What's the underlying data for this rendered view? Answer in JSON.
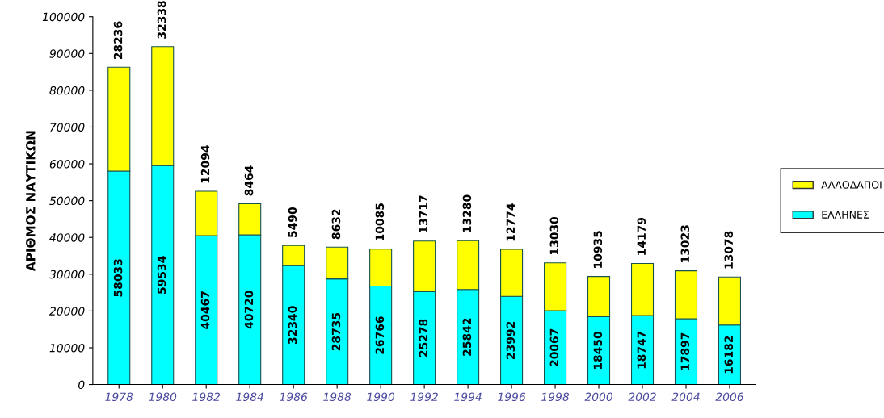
{
  "chart_data": {
    "type": "bar",
    "stacked": true,
    "ylabel": "ΑΡΙΘΜΟΣ ΝΑΥΤΙΚΩΝ",
    "categories": [
      "1978",
      "1980",
      "1982",
      "1984",
      "1986",
      "1988",
      "1990",
      "1992",
      "1994",
      "1996",
      "1998",
      "2000",
      "2002",
      "2004",
      "2006"
    ],
    "series": [
      {
        "name": "ΕΛΛΗΝΕΣ",
        "color": "#00ffff",
        "values": [
          58033,
          59534,
          40467,
          40720,
          32340,
          28735,
          26766,
          25278,
          25842,
          23992,
          20067,
          18450,
          18747,
          17897,
          16182
        ]
      },
      {
        "name": "ΑΛΛΟΔΑΠΟΙ",
        "color": "#ffff00",
        "values": [
          28236,
          32338,
          12094,
          8464,
          5490,
          8632,
          10085,
          13717,
          13280,
          12774,
          13030,
          10935,
          14179,
          13023,
          13078
        ]
      }
    ],
    "ylim": [
      0,
      100000
    ],
    "yticks": [
      0,
      10000,
      20000,
      30000,
      40000,
      50000,
      60000,
      70000,
      80000,
      90000,
      100000
    ],
    "grid": false,
    "legend": "right",
    "data_labels": true
  }
}
